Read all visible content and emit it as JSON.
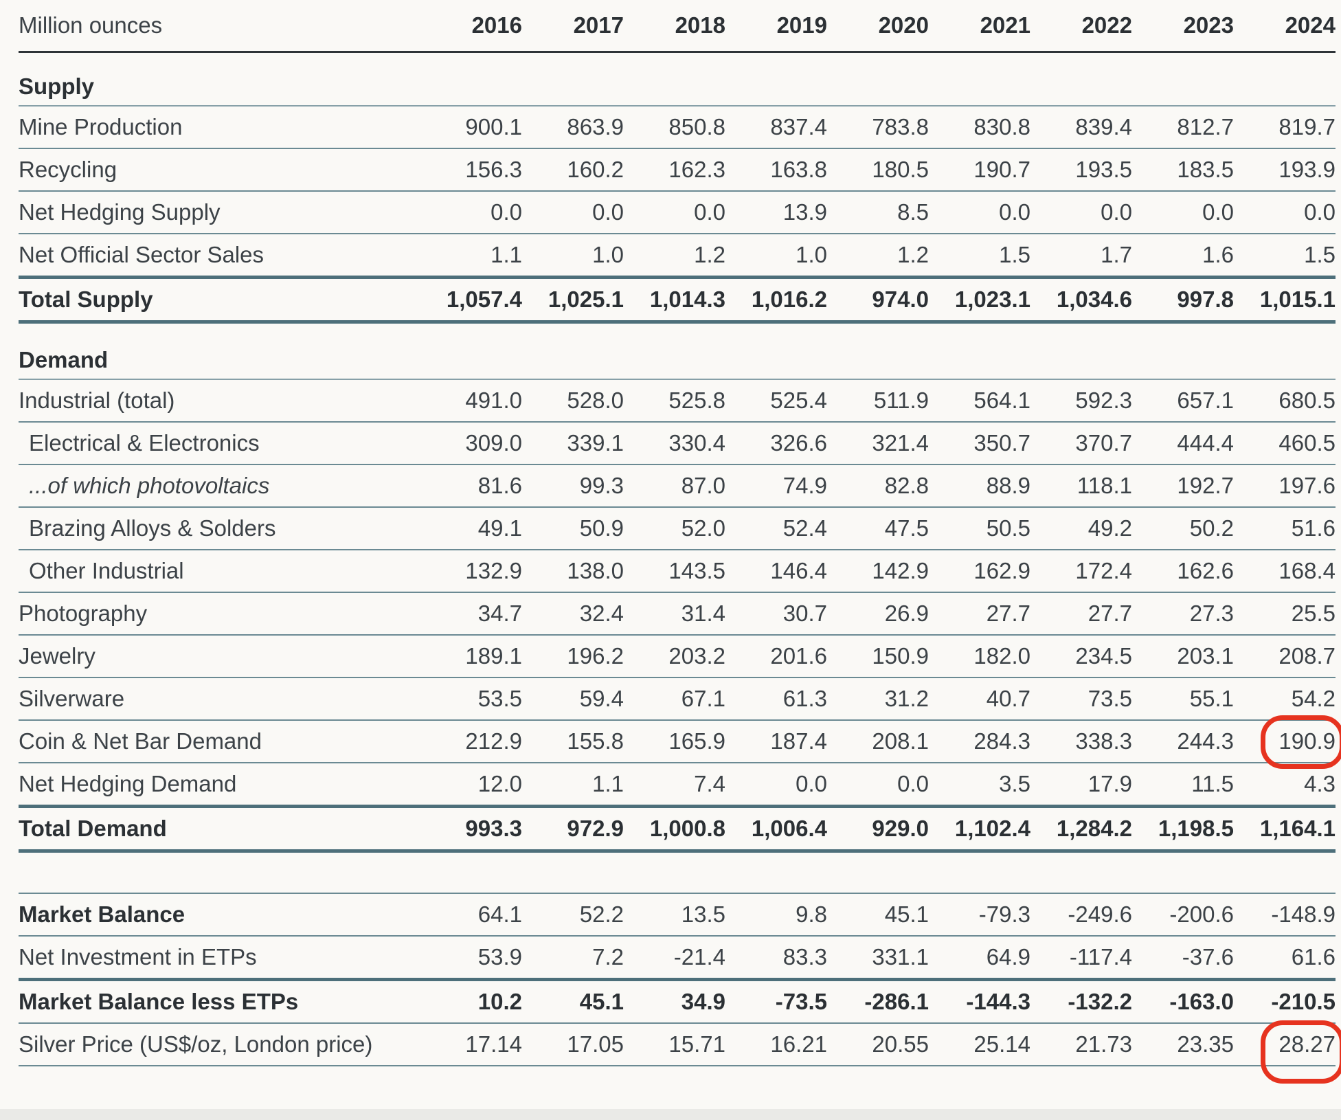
{
  "chart_data": {
    "type": "table",
    "unit_label": "Million ounces",
    "columns": [
      "2016",
      "2017",
      "2018",
      "2019",
      "2020",
      "2021",
      "2022",
      "2023",
      "2024"
    ],
    "rows": [
      {
        "label": "Supply",
        "section": true,
        "gap_before": 22
      },
      {
        "label": "Mine Production",
        "values": [
          "900.1",
          "863.9",
          "850.8",
          "837.4",
          "783.8",
          "830.8",
          "839.4",
          "812.7",
          "819.7"
        ],
        "border": "thin"
      },
      {
        "label": "Recycling",
        "values": [
          "156.3",
          "160.2",
          "162.3",
          "163.8",
          "180.5",
          "190.7",
          "193.5",
          "183.5",
          "193.9"
        ],
        "border": "thin"
      },
      {
        "label": "Net Hedging Supply",
        "values": [
          "0.0",
          "0.0",
          "0.0",
          "13.9",
          "8.5",
          "0.0",
          "0.0",
          "0.0",
          "0.0"
        ],
        "border": "thin"
      },
      {
        "label": "Net Official Sector Sales",
        "values": [
          "1.1",
          "1.0",
          "1.2",
          "1.0",
          "1.2",
          "1.5",
          "1.7",
          "1.6",
          "1.5"
        ],
        "border": "thick"
      },
      {
        "label": "Total Supply",
        "values": [
          "1,057.4",
          "1,025.1",
          "1,014.3",
          "1,016.2",
          "974.0",
          "1,023.1",
          "1,034.6",
          "997.8",
          "1,015.1"
        ],
        "bold_label": true,
        "bold_values": true,
        "border": "thick"
      },
      {
        "label": "Demand",
        "section": true,
        "gap_before": 26
      },
      {
        "label": "Industrial (total)",
        "values": [
          "491.0",
          "528.0",
          "525.8",
          "525.4",
          "511.9",
          "564.1",
          "592.3",
          "657.1",
          "680.5"
        ],
        "border": "thin"
      },
      {
        "label": "Electrical & Electronics",
        "values": [
          "309.0",
          "339.1",
          "330.4",
          "326.6",
          "321.4",
          "350.7",
          "370.7",
          "444.4",
          "460.5"
        ],
        "indent": true,
        "border": "thin"
      },
      {
        "label": "...of which photovoltaics",
        "values": [
          "81.6",
          "99.3",
          "87.0",
          "74.9",
          "82.8",
          "88.9",
          "118.1",
          "192.7",
          "197.6"
        ],
        "indent": true,
        "italic": true,
        "border": "thin"
      },
      {
        "label": "Brazing Alloys & Solders",
        "values": [
          "49.1",
          "50.9",
          "52.0",
          "52.4",
          "47.5",
          "50.5",
          "49.2",
          "50.2",
          "51.6"
        ],
        "indent": true,
        "border": "thin"
      },
      {
        "label": "Other Industrial",
        "values": [
          "132.9",
          "138.0",
          "143.5",
          "146.4",
          "142.9",
          "162.9",
          "172.4",
          "162.6",
          "168.4"
        ],
        "indent": true,
        "border": "thin"
      },
      {
        "label": "Photography",
        "values": [
          "34.7",
          "32.4",
          "31.4",
          "30.7",
          "26.9",
          "27.7",
          "27.7",
          "27.3",
          "25.5"
        ],
        "border": "thin"
      },
      {
        "label": "Jewelry",
        "values": [
          "189.1",
          "196.2",
          "203.2",
          "201.6",
          "150.9",
          "182.0",
          "234.5",
          "203.1",
          "208.7"
        ],
        "border": "thin"
      },
      {
        "label": "Silverware",
        "values": [
          "53.5",
          "59.4",
          "67.1",
          "61.3",
          "31.2",
          "40.7",
          "73.5",
          "55.1",
          "54.2"
        ],
        "border": "thin"
      },
      {
        "label": "Coin & Net Bar Demand",
        "values": [
          "212.9",
          "155.8",
          "165.9",
          "187.4",
          "208.1",
          "284.3",
          "338.3",
          "244.3",
          "190.9"
        ],
        "border": "thin",
        "circle_last": true
      },
      {
        "label": "Net Hedging Demand",
        "values": [
          "12.0",
          "1.1",
          "7.4",
          "0.0",
          "0.0",
          "3.5",
          "17.9",
          "11.5",
          "4.3"
        ],
        "border": "thick"
      },
      {
        "label": "Total Demand",
        "values": [
          "993.3",
          "972.9",
          "1,000.8",
          "1,006.4",
          "929.0",
          "1,102.4",
          "1,284.2",
          "1,198.5",
          "1,164.1"
        ],
        "bold_label": true,
        "bold_values": true,
        "border": "thick"
      },
      {
        "label": "Market Balance",
        "values": [
          "64.1",
          "52.2",
          "13.5",
          "9.8",
          "45.1",
          "-79.3",
          "-249.6",
          "-200.6",
          "-148.9"
        ],
        "bold_label": true,
        "border": "thin",
        "gap_before": 58,
        "top_rule": true
      },
      {
        "label": "Net Investment in ETPs",
        "values": [
          "53.9",
          "7.2",
          "-21.4",
          "83.3",
          "331.1",
          "64.9",
          "-117.4",
          "-37.6",
          "61.6"
        ],
        "border": "thick"
      },
      {
        "label": "Market Balance less ETPs",
        "values": [
          "10.2",
          "45.1",
          "34.9",
          "-73.5",
          "-286.1",
          "-144.3",
          "-132.2",
          "-163.0",
          "-210.5"
        ],
        "bold_label": true,
        "bold_values": true,
        "border": "thin"
      },
      {
        "label": "Silver Price (US$/oz, London price)",
        "values": [
          "17.14",
          "17.05",
          "15.71",
          "16.21",
          "20.55",
          "25.14",
          "21.73",
          "23.35",
          "28.27"
        ],
        "border": "thin",
        "circle_last": true,
        "circle_tall": true
      }
    ],
    "annotations": [
      {
        "type": "red-circle",
        "row": "Coin & Net Bar Demand",
        "column": "2024",
        "value": "190.9"
      },
      {
        "type": "red-circle",
        "row": "Silver Price (US$/oz, London price)",
        "column": "2024",
        "value": "28.27"
      }
    ],
    "colors": {
      "background": "#faf9f6",
      "text": "#3c4247",
      "bold_text": "#2b3034",
      "rule_thin": "#6b8a93",
      "rule_thick": "#4d6f7a",
      "rule_header": "#2e3438",
      "highlight": "#e6331f"
    },
    "legend_position": "none",
    "grid": "horizontal-rules"
  }
}
